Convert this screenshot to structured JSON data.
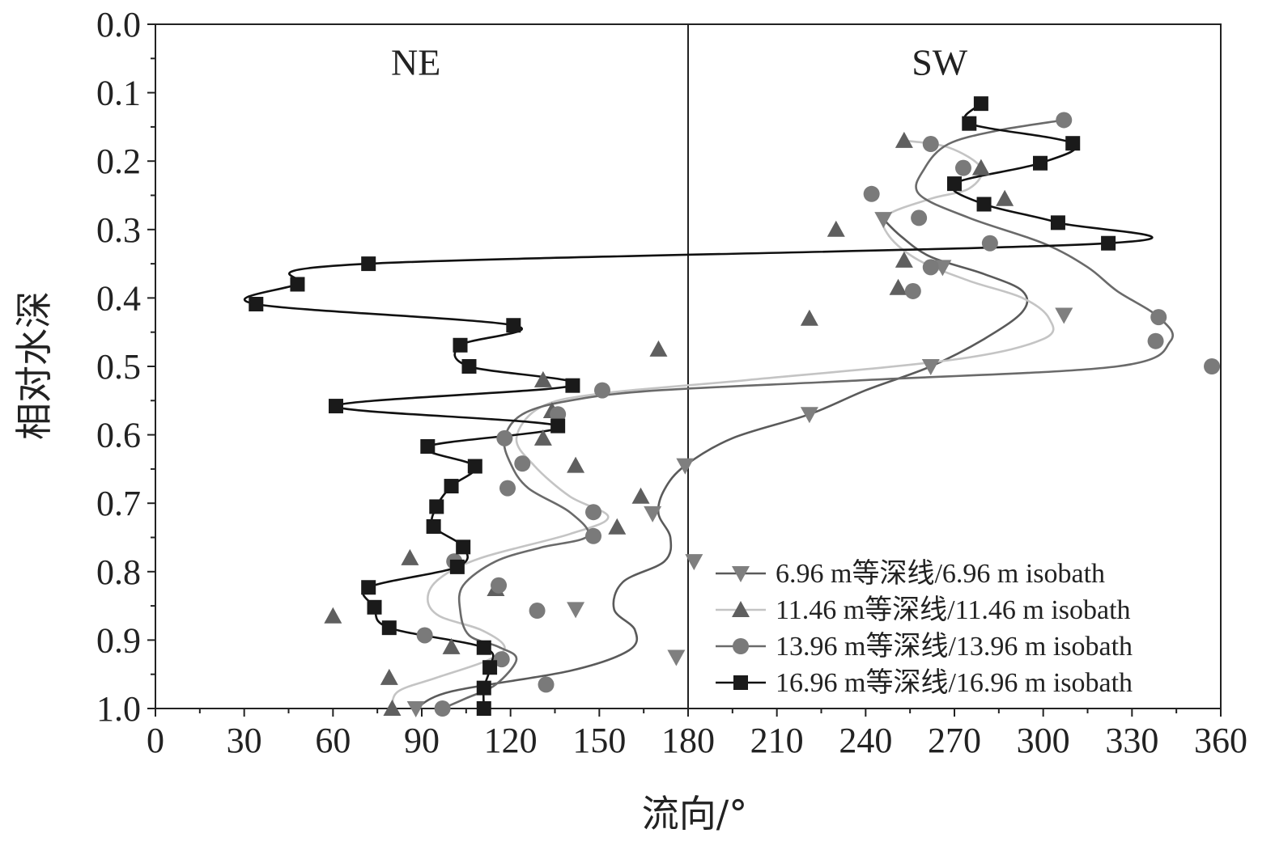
{
  "chart_data": {
    "type": "scatter",
    "xlabel": "流向/°",
    "ylabel": "相对水深",
    "xlim": [
      0,
      360
    ],
    "ylim": [
      1.0,
      0.0
    ],
    "y_axis_inverted": true,
    "xticks": [
      "0",
      "30",
      "60",
      "90",
      "120",
      "150",
      "180",
      "210",
      "240",
      "270",
      "300",
      "330",
      "360"
    ],
    "yticks": [
      "0.0",
      "0.1",
      "0.2",
      "0.3",
      "0.4",
      "0.5",
      "0.6",
      "0.7",
      "0.8",
      "0.9",
      "1.0"
    ],
    "divider_x": 180,
    "annotations": [
      {
        "text": "NE",
        "x": 88,
        "y": 0.055
      },
      {
        "text": "SW",
        "x": 265,
        "y": 0.055
      }
    ],
    "legend_position": "bottom-right",
    "grid": false,
    "series": [
      {
        "name": "6.96 m等深线/6.96 m isobath",
        "marker": "triangle-down",
        "color": "#7f7f7f",
        "points": [
          [
            246,
            0.285
          ],
          [
            266,
            0.355
          ],
          [
            307,
            0.425
          ],
          [
            262,
            0.5
          ],
          [
            221,
            0.57
          ],
          [
            179,
            0.645
          ],
          [
            168,
            0.715
          ],
          [
            182,
            0.785
          ],
          [
            142,
            0.855
          ],
          [
            176,
            0.925
          ],
          [
            88,
            1.0
          ]
        ],
        "curve": [
          [
            246,
            0.285
          ],
          [
            252,
            0.31
          ],
          [
            262,
            0.34
          ],
          [
            280,
            0.365
          ],
          [
            293,
            0.39
          ],
          [
            293,
            0.42
          ],
          [
            280,
            0.46
          ],
          [
            262,
            0.5
          ],
          [
            240,
            0.535
          ],
          [
            221,
            0.57
          ],
          [
            195,
            0.605
          ],
          [
            179,
            0.645
          ],
          [
            172,
            0.68
          ],
          [
            170,
            0.715
          ],
          [
            174,
            0.75
          ],
          [
            172,
            0.785
          ],
          [
            158,
            0.815
          ],
          [
            155,
            0.855
          ],
          [
            162,
            0.885
          ],
          [
            160,
            0.915
          ],
          [
            140,
            0.945
          ],
          [
            100,
            0.975
          ],
          [
            88,
            1.0
          ]
        ]
      },
      {
        "name": "11.46 m等深线/11.46 m isobath",
        "marker": "triangle-up",
        "color": "#5f5f5f",
        "points": [
          [
            253,
            0.17
          ],
          [
            279,
            0.21
          ],
          [
            287,
            0.255
          ],
          [
            230,
            0.3
          ],
          [
            253,
            0.345
          ],
          [
            251,
            0.385
          ],
          [
            221,
            0.43
          ],
          [
            170,
            0.475
          ],
          [
            131,
            0.52
          ],
          [
            134,
            0.565
          ],
          [
            131,
            0.605
          ],
          [
            142,
            0.645
          ],
          [
            164,
            0.69
          ],
          [
            156,
            0.735
          ],
          [
            86,
            0.78
          ],
          [
            115,
            0.825
          ],
          [
            60,
            0.865
          ],
          [
            100,
            0.91
          ],
          [
            79,
            0.955
          ],
          [
            80,
            1.0
          ]
        ],
        "curve": [
          [
            253,
            0.17
          ],
          [
            268,
            0.18
          ],
          [
            279,
            0.21
          ],
          [
            275,
            0.24
          ],
          [
            262,
            0.255
          ],
          [
            247,
            0.28
          ],
          [
            248,
            0.31
          ],
          [
            258,
            0.345
          ],
          [
            275,
            0.375
          ],
          [
            293,
            0.4
          ],
          [
            302,
            0.43
          ],
          [
            300,
            0.46
          ],
          [
            270,
            0.49
          ],
          [
            200,
            0.52
          ],
          [
            150,
            0.54
          ],
          [
            130,
            0.56
          ],
          [
            122,
            0.605
          ],
          [
            128,
            0.645
          ],
          [
            140,
            0.69
          ],
          [
            153,
            0.72
          ],
          [
            140,
            0.745
          ],
          [
            110,
            0.78
          ],
          [
            96,
            0.81
          ],
          [
            92,
            0.84
          ],
          [
            96,
            0.865
          ],
          [
            110,
            0.885
          ],
          [
            118,
            0.91
          ],
          [
            112,
            0.93
          ],
          [
            95,
            0.955
          ],
          [
            82,
            0.975
          ],
          [
            80,
            1.0
          ]
        ]
      },
      {
        "name": "13.96 m等深线/13.96 m isobath",
        "marker": "circle",
        "color": "#7a7a7a",
        "points": [
          [
            307,
            0.14
          ],
          [
            262,
            0.175
          ],
          [
            273,
            0.21
          ],
          [
            242,
            0.248
          ],
          [
            258,
            0.283
          ],
          [
            282,
            0.32
          ],
          [
            262,
            0.355
          ],
          [
            256,
            0.39
          ],
          [
            339,
            0.428
          ],
          [
            338,
            0.463
          ],
          [
            357,
            0.5
          ],
          [
            151,
            0.535
          ],
          [
            136,
            0.57
          ],
          [
            118,
            0.605
          ],
          [
            124,
            0.642
          ],
          [
            119,
            0.678
          ],
          [
            148,
            0.713
          ],
          [
            148,
            0.748
          ],
          [
            101,
            0.785
          ],
          [
            116,
            0.82
          ],
          [
            129,
            0.857
          ],
          [
            91,
            0.893
          ],
          [
            117,
            0.928
          ],
          [
            132,
            0.965
          ],
          [
            97,
            1.0
          ]
        ],
        "curve": [
          [
            307,
            0.14
          ],
          [
            285,
            0.155
          ],
          [
            268,
            0.175
          ],
          [
            260,
            0.21
          ],
          [
            258,
            0.248
          ],
          [
            275,
            0.283
          ],
          [
            300,
            0.32
          ],
          [
            315,
            0.355
          ],
          [
            325,
            0.39
          ],
          [
            339,
            0.428
          ],
          [
            343,
            0.463
          ],
          [
            325,
            0.5
          ],
          [
            240,
            0.52
          ],
          [
            170,
            0.535
          ],
          [
            140,
            0.55
          ],
          [
            124,
            0.57
          ],
          [
            118,
            0.605
          ],
          [
            120,
            0.642
          ],
          [
            126,
            0.678
          ],
          [
            140,
            0.713
          ],
          [
            146,
            0.748
          ],
          [
            130,
            0.765
          ],
          [
            115,
            0.785
          ],
          [
            104,
            0.82
          ],
          [
            103,
            0.857
          ],
          [
            106,
            0.893
          ],
          [
            116,
            0.91
          ],
          [
            122,
            0.928
          ],
          [
            115,
            0.965
          ],
          [
            105,
            0.985
          ],
          [
            97,
            1.0
          ]
        ]
      },
      {
        "name": "16.96 m等深线/16.96 m isobath",
        "marker": "square",
        "color": "#1a1a1a",
        "points": [
          [
            279,
            0.116
          ],
          [
            275,
            0.145
          ],
          [
            310,
            0.174
          ],
          [
            299,
            0.203
          ],
          [
            270,
            0.233
          ],
          [
            280,
            0.263
          ],
          [
            305,
            0.29
          ],
          [
            322,
            0.32
          ],
          [
            72,
            0.35
          ],
          [
            48,
            0.38
          ],
          [
            34,
            0.409
          ],
          [
            121,
            0.44
          ],
          [
            103,
            0.469
          ],
          [
            106,
            0.5
          ],
          [
            141,
            0.528
          ],
          [
            61,
            0.558
          ],
          [
            136,
            0.587
          ],
          [
            92,
            0.617
          ],
          [
            108,
            0.646
          ],
          [
            100,
            0.675
          ],
          [
            95,
            0.705
          ],
          [
            94,
            0.734
          ],
          [
            104,
            0.764
          ],
          [
            102,
            0.793
          ],
          [
            72,
            0.823
          ],
          [
            74,
            0.852
          ],
          [
            79,
            0.882
          ],
          [
            111,
            0.911
          ],
          [
            113,
            0.94
          ],
          [
            111,
            0.97
          ],
          [
            111,
            1.0
          ]
        ]
      }
    ]
  }
}
